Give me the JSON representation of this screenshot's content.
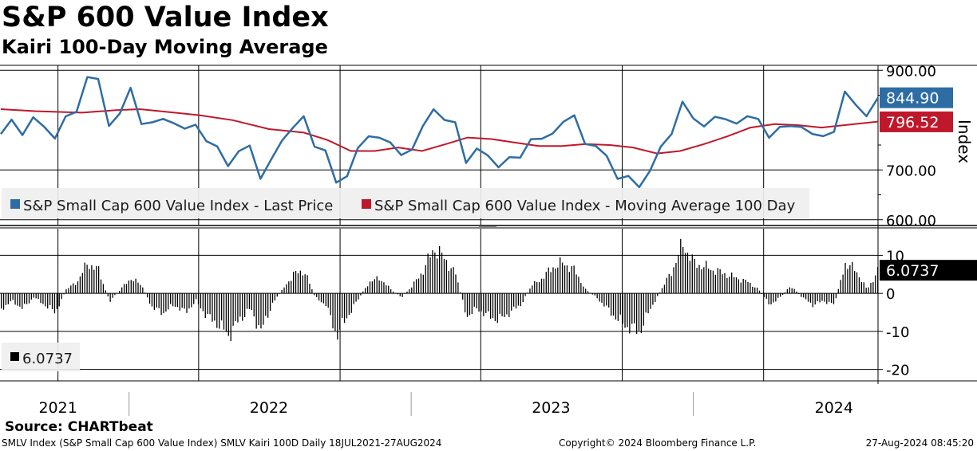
{
  "header": {
    "title": "S&P 600 Value Index",
    "subtitle": "Kairi 100-Day Moving Average"
  },
  "footer": {
    "source": "Source: CHARTbeat",
    "ticker_info": "SMLV Index (S&P Small Cap 600 Value Index) SMLV Kairi 100D  Daily 18JUL2021-27AUG2024",
    "copyright": "Copyright© 2024 Bloomberg Finance L.P.",
    "timestamp": "27-Aug-2024 08:45:20"
  },
  "colors": {
    "price": "#2e6da4",
    "moving_average": "#c0182b",
    "kairi_bars": "#000000",
    "grid": "#000000"
  },
  "chart_data": [
    {
      "type": "line",
      "ylabel": "Index",
      "ylim": [
        590,
        910
      ],
      "yticks": [
        "900.00",
        "700.00",
        "600.00"
      ],
      "xlim": [
        "2021-07-18",
        "2024-08-27"
      ],
      "year_labels": [
        {
          "label": "2021",
          "date": "2021-10-01"
        },
        {
          "label": "2022",
          "date": "2022-07-01"
        },
        {
          "label": "2023",
          "date": "2023-07-01"
        },
        {
          "label": "2024",
          "date": "2024-07-01"
        }
      ],
      "legend": "top-left",
      "grid": true,
      "last_values": {
        "price": "844.90",
        "moving_average": "796.52"
      },
      "series": [
        {
          "name": "S&P Small Cap 600 Value Index - Last Price",
          "points": [
            [
              "2021-07-19",
              772
            ],
            [
              "2021-08-02",
              795
            ],
            [
              "2021-08-16",
              778
            ],
            [
              "2021-08-30",
              801
            ],
            [
              "2021-09-13",
              785
            ],
            [
              "2021-09-27",
              770
            ],
            [
              "2021-10-11",
              800
            ],
            [
              "2021-10-25",
              820
            ],
            [
              "2021-11-08",
              890
            ],
            [
              "2021-11-22",
              875
            ],
            [
              "2021-12-06",
              795
            ],
            [
              "2021-12-20",
              812
            ],
            [
              "2022-01-03",
              860
            ],
            [
              "2022-01-17",
              800
            ],
            [
              "2022-01-31",
              790
            ],
            [
              "2022-02-14",
              802
            ],
            [
              "2022-02-28",
              800
            ],
            [
              "2022-03-14",
              775
            ],
            [
              "2022-03-28",
              795
            ],
            [
              "2022-04-11",
              760
            ],
            [
              "2022-04-25",
              740
            ],
            [
              "2022-05-09",
              715
            ],
            [
              "2022-05-23",
              735
            ],
            [
              "2022-06-06",
              745
            ],
            [
              "2022-06-20",
              690
            ],
            [
              "2022-07-04",
              715
            ],
            [
              "2022-07-18",
              760
            ],
            [
              "2022-08-01",
              790
            ],
            [
              "2022-08-15",
              800
            ],
            [
              "2022-08-29",
              752
            ],
            [
              "2022-09-12",
              740
            ],
            [
              "2022-09-26",
              668
            ],
            [
              "2022-10-10",
              695
            ],
            [
              "2022-10-24",
              740
            ],
            [
              "2022-11-07",
              765
            ],
            [
              "2022-11-21",
              772
            ],
            [
              "2022-12-05",
              748
            ],
            [
              "2022-12-19",
              732
            ],
            [
              "2023-01-02",
              745
            ],
            [
              "2023-01-16",
              780
            ],
            [
              "2023-01-30",
              828
            ],
            [
              "2023-02-13",
              800
            ],
            [
              "2023-02-27",
              790
            ],
            [
              "2023-03-13",
              722
            ],
            [
              "2023-03-27",
              738
            ],
            [
              "2023-04-10",
              728
            ],
            [
              "2023-04-24",
              712
            ],
            [
              "2023-05-08",
              718
            ],
            [
              "2023-05-22",
              728
            ],
            [
              "2023-06-05",
              765
            ],
            [
              "2023-06-19",
              755
            ],
            [
              "2023-07-03",
              780
            ],
            [
              "2023-07-17",
              795
            ],
            [
              "2023-07-31",
              805
            ],
            [
              "2023-08-14",
              760
            ],
            [
              "2023-08-28",
              742
            ],
            [
              "2023-09-11",
              728
            ],
            [
              "2023-09-25",
              688
            ],
            [
              "2023-10-09",
              680
            ],
            [
              "2023-10-23",
              670
            ],
            [
              "2023-11-06",
              700
            ],
            [
              "2023-11-20",
              740
            ],
            [
              "2023-12-04",
              780
            ],
            [
              "2023-12-18",
              834
            ],
            [
              "2024-01-01",
              800
            ],
            [
              "2024-01-15",
              795
            ],
            [
              "2024-01-29",
              800
            ],
            [
              "2024-02-12",
              803
            ],
            [
              "2024-02-26",
              798
            ],
            [
              "2024-03-11",
              800
            ],
            [
              "2024-03-25",
              808
            ],
            [
              "2024-04-08",
              765
            ],
            [
              "2024-04-22",
              780
            ],
            [
              "2024-05-06",
              796
            ],
            [
              "2024-05-20",
              782
            ],
            [
              "2024-06-03",
              770
            ],
            [
              "2024-06-17",
              775
            ],
            [
              "2024-07-01",
              769
            ],
            [
              "2024-07-15",
              860
            ],
            [
              "2024-07-29",
              835
            ],
            [
              "2024-08-12",
              800
            ],
            [
              "2024-08-27",
              845
            ]
          ]
        },
        {
          "name": "S&P Small Cap 600 Value Index - Moving Average 100 Day",
          "points": [
            [
              "2021-07-19",
              822
            ],
            [
              "2021-09-01",
              818
            ],
            [
              "2021-11-01",
              815
            ],
            [
              "2021-12-15",
              820
            ],
            [
              "2022-01-15",
              822
            ],
            [
              "2022-03-01",
              815
            ],
            [
              "2022-04-01",
              810
            ],
            [
              "2022-05-15",
              800
            ],
            [
              "2022-07-01",
              782
            ],
            [
              "2022-08-15",
              775
            ],
            [
              "2022-09-15",
              760
            ],
            [
              "2022-10-15",
              738
            ],
            [
              "2022-11-15",
              738
            ],
            [
              "2022-12-15",
              745
            ],
            [
              "2023-01-15",
              738
            ],
            [
              "2023-02-15",
              752
            ],
            [
              "2023-03-15",
              765
            ],
            [
              "2023-04-15",
              762
            ],
            [
              "2023-05-15",
              755
            ],
            [
              "2023-06-15",
              748
            ],
            [
              "2023-07-15",
              748
            ],
            [
              "2023-08-15",
              752
            ],
            [
              "2023-09-15",
              750
            ],
            [
              "2023-10-15",
              745
            ],
            [
              "2023-11-15",
              733
            ],
            [
              "2023-12-15",
              738
            ],
            [
              "2024-01-15",
              752
            ],
            [
              "2024-02-15",
              768
            ],
            [
              "2024-03-15",
              785
            ],
            [
              "2024-04-15",
              792
            ],
            [
              "2024-05-15",
              790
            ],
            [
              "2024-06-15",
              785
            ],
            [
              "2024-07-15",
              790
            ],
            [
              "2024-08-27",
              797
            ]
          ]
        }
      ]
    },
    {
      "type": "bar",
      "ylim": [
        -23,
        17
      ],
      "yticks": [
        "10",
        "0",
        "-10",
        "-20"
      ],
      "grid": true,
      "legend_value": "6.0737",
      "last_value": "6.0737",
      "series": [
        {
          "name": "",
          "points": [
            [
              "2021-07-19",
              -4
            ],
            [
              "2021-08-02",
              -2
            ],
            [
              "2021-08-16",
              -4
            ],
            [
              "2021-08-30",
              -1
            ],
            [
              "2021-09-13",
              -3
            ],
            [
              "2021-09-27",
              -5
            ],
            [
              "2021-10-11",
              1
            ],
            [
              "2021-10-25",
              3
            ],
            [
              "2021-11-08",
              8
            ],
            [
              "2021-11-22",
              6
            ],
            [
              "2021-12-06",
              -2
            ],
            [
              "2021-12-20",
              1
            ],
            [
              "2022-01-03",
              4
            ],
            [
              "2022-01-17",
              2
            ],
            [
              "2022-01-31",
              -4
            ],
            [
              "2022-02-14",
              -5
            ],
            [
              "2022-02-28",
              -3
            ],
            [
              "2022-03-14",
              -5
            ],
            [
              "2022-03-28",
              -2
            ],
            [
              "2022-04-11",
              -6
            ],
            [
              "2022-04-25",
              -8
            ],
            [
              "2022-05-09",
              -11
            ],
            [
              "2022-05-23",
              -7
            ],
            [
              "2022-06-06",
              -4
            ],
            [
              "2022-06-20",
              -10
            ],
            [
              "2022-07-04",
              -3
            ],
            [
              "2022-07-18",
              1
            ],
            [
              "2022-08-01",
              5
            ],
            [
              "2022-08-15",
              6
            ],
            [
              "2022-08-29",
              -1
            ],
            [
              "2022-09-12",
              -3
            ],
            [
              "2022-09-26",
              -11
            ],
            [
              "2022-10-10",
              -6
            ],
            [
              "2022-11-07",
              3
            ],
            [
              "2022-11-21",
              4
            ],
            [
              "2022-12-05",
              1
            ],
            [
              "2022-12-19",
              -1
            ],
            [
              "2023-01-02",
              2
            ],
            [
              "2023-01-16",
              6
            ],
            [
              "2023-01-30",
              12
            ],
            [
              "2023-02-13",
              9
            ],
            [
              "2023-02-27",
              5
            ],
            [
              "2023-03-13",
              -6
            ],
            [
              "2023-03-27",
              -4
            ],
            [
              "2023-04-10",
              -6
            ],
            [
              "2023-04-24",
              -7
            ],
            [
              "2023-05-08",
              -5
            ],
            [
              "2023-05-22",
              -3
            ],
            [
              "2023-06-05",
              2
            ],
            [
              "2023-06-19",
              4
            ],
            [
              "2023-07-03",
              7
            ],
            [
              "2023-07-17",
              8
            ],
            [
              "2023-07-31",
              6
            ],
            [
              "2023-08-14",
              1
            ],
            [
              "2023-08-28",
              -1
            ],
            [
              "2023-09-11",
              -4
            ],
            [
              "2023-09-25",
              -7
            ],
            [
              "2023-10-09",
              -9
            ],
            [
              "2023-10-23",
              -10
            ],
            [
              "2023-11-06",
              -4
            ],
            [
              "2023-11-20",
              1
            ],
            [
              "2023-12-04",
              6
            ],
            [
              "2023-12-18",
              13
            ],
            [
              "2024-01-01",
              8
            ],
            [
              "2024-01-15",
              7
            ],
            [
              "2024-01-29",
              6
            ],
            [
              "2024-02-12",
              5
            ],
            [
              "2024-02-26",
              4
            ],
            [
              "2024-03-11",
              3
            ],
            [
              "2024-03-25",
              1
            ],
            [
              "2024-04-08",
              -3
            ],
            [
              "2024-04-22",
              -1
            ],
            [
              "2024-05-06",
              2
            ],
            [
              "2024-05-20",
              -1
            ],
            [
              "2024-06-03",
              -3
            ],
            [
              "2024-06-17",
              -2
            ],
            [
              "2024-07-01",
              -3
            ],
            [
              "2024-07-15",
              8
            ],
            [
              "2024-07-29",
              6
            ],
            [
              "2024-08-12",
              1
            ],
            [
              "2024-08-27",
              6.07
            ]
          ]
        }
      ]
    }
  ]
}
